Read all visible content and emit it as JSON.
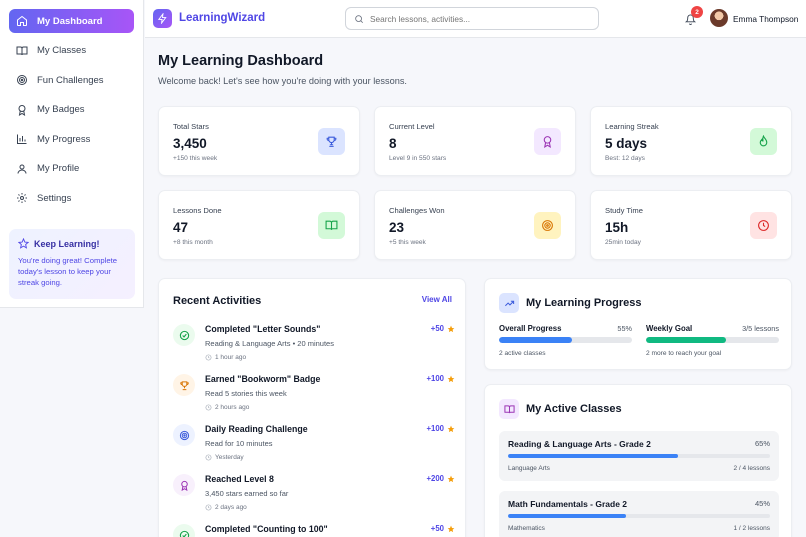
{
  "sidebar": {
    "items": [
      {
        "label": "My Dashboard",
        "icon": "home-icon"
      },
      {
        "label": "My Classes",
        "icon": "book-icon"
      },
      {
        "label": "Fun Challenges",
        "icon": "target-icon"
      },
      {
        "label": "My Badges",
        "icon": "award-icon"
      },
      {
        "label": "My Progress",
        "icon": "bar-chart-icon"
      },
      {
        "label": "My Profile",
        "icon": "user-icon"
      },
      {
        "label": "Settings",
        "icon": "gear-icon"
      }
    ],
    "keep_learning": {
      "title": "Keep Learning!",
      "text": "You're doing great! Complete today's lesson to keep your streak going."
    }
  },
  "header": {
    "brand": "LearningWizard",
    "search_placeholder": "Search lessons, activities...",
    "notification_count": "2",
    "user_name": "Emma Thompson"
  },
  "main": {
    "title": "My Learning Dashboard",
    "subtitle": "Welcome back! Let's see how you're doing with your lessons."
  },
  "stats": [
    {
      "label": "Total Stars",
      "value": "3,450",
      "sub": "+150 this week",
      "icon": "trophy-icon",
      "color": "#3b5bdb",
      "bg": "#dbe4ff"
    },
    {
      "label": "Current Level",
      "value": "8",
      "sub": "Level 9 in 550 stars",
      "icon": "award-icon",
      "color": "#9c36b5",
      "bg": "#f3e8ff"
    },
    {
      "label": "Learning Streak",
      "value": "5 days",
      "sub": "Best: 12 days",
      "icon": "flame-icon",
      "color": "#16a34a",
      "bg": "#d3f9d8"
    },
    {
      "label": "Lessons Done",
      "value": "47",
      "sub": "+8 this month",
      "icon": "book-open-icon",
      "color": "#16a34a",
      "bg": "#d3f9d8"
    },
    {
      "label": "Challenges Won",
      "value": "23",
      "sub": "+5 this week",
      "icon": "target-icon",
      "color": "#d97706",
      "bg": "#fff3bf"
    },
    {
      "label": "Study Time",
      "value": "15h",
      "sub": "25min today",
      "icon": "clock-icon",
      "color": "#dc2626",
      "bg": "#ffe3e3"
    }
  ],
  "recent": {
    "title": "Recent Activities",
    "view_all": "View All",
    "items": [
      {
        "title": "Completed \"Letter Sounds\"",
        "desc": "Reading & Language Arts • 20 minutes",
        "time": "1 hour ago",
        "points": "+50",
        "icon": "check-circle-icon",
        "color": "#16a34a",
        "bg": "#ebfbee"
      },
      {
        "title": "Earned \"Bookworm\" Badge",
        "desc": "Read 5 stories this week",
        "time": "2 hours ago",
        "points": "+100",
        "icon": "trophy-icon",
        "color": "#d97706",
        "bg": "#fff4e6"
      },
      {
        "title": "Daily Reading Challenge",
        "desc": "Read for 10 minutes",
        "time": "Yesterday",
        "points": "+100",
        "icon": "target-icon",
        "color": "#3b5bdb",
        "bg": "#edf2ff"
      },
      {
        "title": "Reached Level 8",
        "desc": "3,450 stars earned so far",
        "time": "2 days ago",
        "points": "+200",
        "icon": "award-icon",
        "color": "#9c36b5",
        "bg": "#f8f0fc"
      },
      {
        "title": "Completed \"Counting to 100\"",
        "desc": "",
        "time": "",
        "points": "+50",
        "icon": "check-circle-icon",
        "color": "#16a34a",
        "bg": "#ebfbee"
      }
    ]
  },
  "progress": {
    "title": "My Learning Progress",
    "overall": {
      "label": "Overall Progress",
      "pct": "55%",
      "value": 0.55,
      "sub": "2 active classes",
      "color": "#3b82f6"
    },
    "weekly": {
      "label": "Weekly Goal",
      "pct": "3/5 lessons",
      "value": 0.6,
      "sub": "2 more to reach your goal",
      "color": "#10b981"
    }
  },
  "classes": {
    "title": "My Active Classes",
    "items": [
      {
        "name": "Reading & Language Arts - Grade 2",
        "pct": "65%",
        "value": 0.65,
        "subject": "Language Arts",
        "lessons": "2 / 4 lessons"
      },
      {
        "name": "Math Fundamentals - Grade 2",
        "pct": "45%",
        "value": 0.45,
        "subject": "Mathematics",
        "lessons": "1 / 2 lessons"
      }
    ]
  }
}
